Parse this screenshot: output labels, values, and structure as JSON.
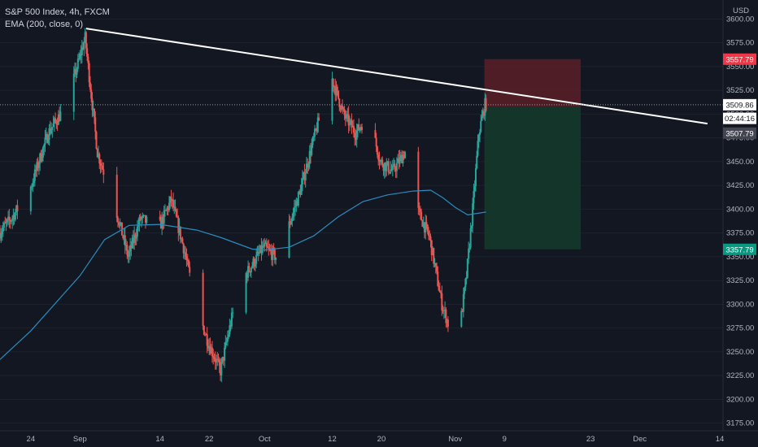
{
  "legend": {
    "symbol_line": "S&P 500 Index, 4h, FXCM",
    "indicator_line": "EMA (200, close, 0)"
  },
  "currency": "USD",
  "colors": {
    "background": "#131722",
    "up": "#26a69a",
    "down": "#ef5350",
    "ema": "#2b8cbe",
    "trendline": "#ffffff",
    "stop_zone": "#5a1f26",
    "target_zone": "#15392a"
  },
  "chart_data": {
    "type": "candlestick",
    "y_range": [
      3167,
      3620
    ],
    "y_ticks": [
      3175,
      3200,
      3225,
      3250,
      3275,
      3300,
      3325,
      3350,
      3375,
      3400,
      3425,
      3450,
      3475,
      3500,
      3525,
      3550,
      3575,
      3600
    ],
    "x_range": [
      "2020-08-19",
      "2020-12-14"
    ],
    "x_ticks": [
      {
        "label": "24",
        "date": "2020-08-24"
      },
      {
        "label": "Sep",
        "date": "2020-09-01"
      },
      {
        "label": "14",
        "date": "2020-09-14"
      },
      {
        "label": "22",
        "date": "2020-09-22"
      },
      {
        "label": "Oct",
        "date": "2020-10-01"
      },
      {
        "label": "12",
        "date": "2020-10-12"
      },
      {
        "label": "20",
        "date": "2020-10-20"
      },
      {
        "label": "Nov",
        "date": "2020-11-01"
      },
      {
        "label": "9",
        "date": "2020-11-09"
      },
      {
        "label": "23",
        "date": "2020-11-23"
      },
      {
        "label": "Dec",
        "date": "2020-12-01"
      },
      {
        "label": "14",
        "date": "2020-12-14"
      }
    ],
    "price_path": [
      {
        "date": "2020-08-19",
        "price": 3375
      },
      {
        "date": "2020-08-21",
        "price": 3390
      },
      {
        "date": "2020-08-24",
        "price": 3420
      },
      {
        "date": "2020-08-27",
        "price": 3480
      },
      {
        "date": "2020-08-30",
        "price": 3510
      },
      {
        "date": "2020-09-02",
        "price": 3580
      },
      {
        "date": "2020-09-04",
        "price": 3460
      },
      {
        "date": "2020-09-07",
        "price": 3400
      },
      {
        "date": "2020-09-09",
        "price": 3350
      },
      {
        "date": "2020-09-11",
        "price": 3390
      },
      {
        "date": "2020-09-14",
        "price": 3380
      },
      {
        "date": "2020-09-16",
        "price": 3410
      },
      {
        "date": "2020-09-18",
        "price": 3360
      },
      {
        "date": "2020-09-20",
        "price": 3300
      },
      {
        "date": "2020-09-22",
        "price": 3260
      },
      {
        "date": "2020-09-24",
        "price": 3230
      },
      {
        "date": "2020-09-26",
        "price": 3290
      },
      {
        "date": "2020-09-28",
        "price": 3330
      },
      {
        "date": "2020-10-01",
        "price": 3360
      },
      {
        "date": "2020-10-03",
        "price": 3350
      },
      {
        "date": "2020-10-05",
        "price": 3380
      },
      {
        "date": "2020-10-07",
        "price": 3420
      },
      {
        "date": "2020-10-09",
        "price": 3470
      },
      {
        "date": "2020-10-12",
        "price": 3540
      },
      {
        "date": "2020-10-14",
        "price": 3500
      },
      {
        "date": "2020-10-16",
        "price": 3480
      },
      {
        "date": "2020-10-18",
        "price": 3500
      },
      {
        "date": "2020-10-20",
        "price": 3450
      },
      {
        "date": "2020-10-22",
        "price": 3440
      },
      {
        "date": "2020-10-24",
        "price": 3460
      },
      {
        "date": "2020-10-26",
        "price": 3400
      },
      {
        "date": "2020-10-28",
        "price": 3370
      },
      {
        "date": "2020-10-30",
        "price": 3300
      },
      {
        "date": "2020-11-01",
        "price": 3260
      },
      {
        "date": "2020-11-02",
        "price": 3280
      },
      {
        "date": "2020-11-03",
        "price": 3330
      },
      {
        "date": "2020-11-04",
        "price": 3400
      },
      {
        "date": "2020-11-05",
        "price": 3480
      },
      {
        "date": "2020-11-06",
        "price": 3510
      }
    ],
    "ema_200": [
      {
        "date": "2020-08-19",
        "price": 3242
      },
      {
        "date": "2020-08-24",
        "price": 3272
      },
      {
        "date": "2020-09-01",
        "price": 3330
      },
      {
        "date": "2020-09-05",
        "price": 3368
      },
      {
        "date": "2020-09-09",
        "price": 3383
      },
      {
        "date": "2020-09-14",
        "price": 3384
      },
      {
        "date": "2020-09-20",
        "price": 3378
      },
      {
        "date": "2020-09-24",
        "price": 3370
      },
      {
        "date": "2020-09-29",
        "price": 3358
      },
      {
        "date": "2020-10-01",
        "price": 3357
      },
      {
        "date": "2020-10-05",
        "price": 3360
      },
      {
        "date": "2020-10-09",
        "price": 3372
      },
      {
        "date": "2020-10-13",
        "price": 3392
      },
      {
        "date": "2020-10-17",
        "price": 3408
      },
      {
        "date": "2020-10-21",
        "price": 3415
      },
      {
        "date": "2020-10-25",
        "price": 3419
      },
      {
        "date": "2020-10-28",
        "price": 3420
      },
      {
        "date": "2020-10-30",
        "price": 3412
      },
      {
        "date": "2020-11-01",
        "price": 3402
      },
      {
        "date": "2020-11-03",
        "price": 3394
      },
      {
        "date": "2020-11-06",
        "price": 3397
      }
    ],
    "trendline": [
      {
        "date": "2020-09-02",
        "price": 3590
      },
      {
        "date": "2020-12-12",
        "price": 3490
      }
    ],
    "position": {
      "side": "short",
      "start": "2020-11-06",
      "end": "2020-11-21",
      "entry": 3507.79,
      "stop": 3557.79,
      "target": 3357.79
    },
    "price_tags": [
      {
        "id": "stop",
        "label": "3557.79",
        "price": 3557.79,
        "bg": "#f23645",
        "fg": "#ffffff"
      },
      {
        "id": "last",
        "label": "3509.86",
        "price": 3509.86,
        "bg": "#ffffff",
        "fg": "#131722"
      },
      {
        "id": "countdown",
        "label": "02:44:16",
        "price": 3495.5,
        "bg": "#ffffff",
        "fg": "#131722"
      },
      {
        "id": "entry",
        "label": "3507.79",
        "price": 3480.0,
        "bg": "#434651",
        "fg": "#ffffff"
      },
      {
        "id": "target",
        "label": "3357.79",
        "price": 3357.79,
        "bg": "#089981",
        "fg": "#ffffff"
      }
    ]
  }
}
